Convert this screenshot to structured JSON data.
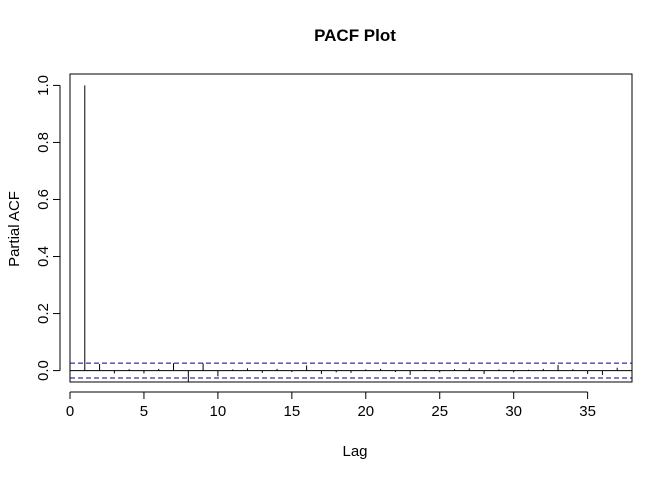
{
  "chart_data": {
    "type": "bar",
    "title": "PACF Plot",
    "xlabel": "Lag",
    "ylabel": "Partial ACF",
    "xlim": [
      0,
      38
    ],
    "ylim": [
      -0.04,
      1.04
    ],
    "x_ticks": [
      0,
      5,
      10,
      15,
      20,
      25,
      30,
      35
    ],
    "y_ticks": [
      0.0,
      0.2,
      0.4,
      0.6,
      0.8,
      1.0
    ],
    "y_tick_labels": [
      "0.0",
      "0.2",
      "0.4",
      "0.6",
      "0.8",
      "1.0"
    ],
    "confidence_bound": 0.026,
    "grid": false,
    "lags": [
      1,
      2,
      3,
      4,
      5,
      6,
      7,
      8,
      9,
      10,
      11,
      12,
      13,
      14,
      15,
      16,
      17,
      18,
      19,
      20,
      21,
      22,
      23,
      24,
      25,
      26,
      27,
      28,
      29,
      30,
      31,
      32,
      33,
      34,
      35,
      36,
      37
    ],
    "values": [
      1.0,
      0.023,
      -0.01,
      0.005,
      -0.01,
      0.006,
      0.026,
      -0.04,
      0.025,
      -0.02,
      0.004,
      0.008,
      -0.008,
      0.006,
      -0.005,
      0.018,
      -0.012,
      -0.006,
      -0.008,
      0.004,
      0.006,
      -0.005,
      -0.015,
      0.003,
      -0.006,
      0.005,
      0.008,
      -0.012,
      0.004,
      -0.006,
      0.003,
      0.006,
      0.02,
      0.005,
      -0.012,
      -0.015,
      0.01
    ],
    "colors": {
      "bars": "#000000",
      "bounds": "#00008b",
      "axis": "#000000"
    }
  }
}
